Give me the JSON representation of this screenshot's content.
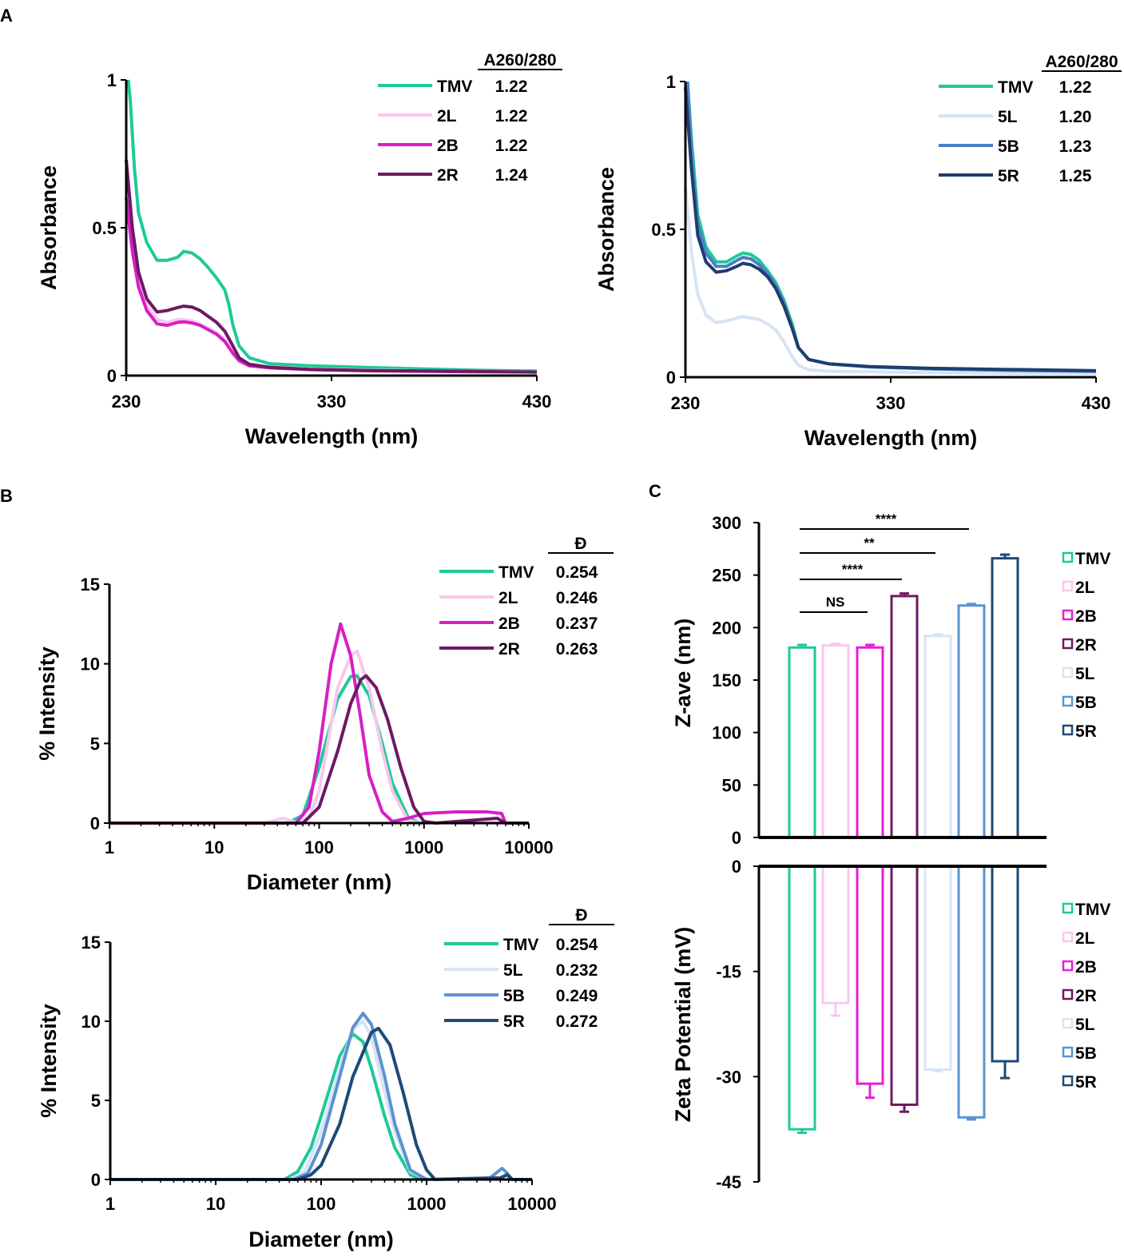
{
  "panels": {
    "a": "A",
    "b": "B",
    "c": "C"
  },
  "chart_data": [
    {
      "id": "A-left",
      "type": "line",
      "title": "",
      "xlabel": "Wavelength (nm)",
      "ylabel": "Absorbance",
      "xlim": [
        230,
        430
      ],
      "ylim": [
        0,
        1
      ],
      "xticks": [
        "230",
        "330",
        "430"
      ],
      "yticks": [
        "0",
        "0.5",
        "1"
      ],
      "legend_header": "A260/280",
      "series": [
        {
          "name": "TMV",
          "ratio": "1.22",
          "color": "#1fc99a",
          "x": [
            231,
            232,
            234,
            236,
            240,
            245,
            250,
            255,
            258,
            262,
            266,
            270,
            274,
            276,
            278,
            280,
            282,
            285,
            290,
            300,
            320,
            350,
            400,
            430
          ],
          "values": [
            1.0,
            0.93,
            0.7,
            0.55,
            0.45,
            0.39,
            0.39,
            0.4,
            0.42,
            0.415,
            0.395,
            0.365,
            0.33,
            0.31,
            0.29,
            0.24,
            0.17,
            0.1,
            0.06,
            0.04,
            0.033,
            0.027,
            0.018,
            0.015
          ]
        },
        {
          "name": "2L",
          "ratio": "1.22",
          "color": "#f9c7ee",
          "x": [
            230,
            233,
            236,
            240,
            245,
            250,
            255,
            258,
            262,
            266,
            270,
            274,
            278,
            282,
            285,
            290,
            300,
            320,
            350,
            400,
            430
          ],
          "values": [
            0.62,
            0.45,
            0.32,
            0.24,
            0.19,
            0.18,
            0.19,
            0.19,
            0.185,
            0.175,
            0.16,
            0.145,
            0.12,
            0.08,
            0.05,
            0.035,
            0.028,
            0.022,
            0.018,
            0.014,
            0.012
          ]
        },
        {
          "name": "2B",
          "ratio": "1.22",
          "color": "#d81ec6",
          "x": [
            230,
            233,
            236,
            240,
            245,
            250,
            255,
            258,
            262,
            266,
            270,
            274,
            278,
            282,
            285,
            290,
            300,
            320,
            350,
            400,
            430
          ],
          "values": [
            0.6,
            0.42,
            0.3,
            0.22,
            0.175,
            0.17,
            0.18,
            0.182,
            0.178,
            0.17,
            0.155,
            0.14,
            0.115,
            0.075,
            0.05,
            0.033,
            0.026,
            0.02,
            0.016,
            0.013,
            0.012
          ]
        },
        {
          "name": "2R",
          "ratio": "1.24",
          "color": "#6d1a62",
          "x": [
            230,
            233,
            236,
            240,
            245,
            250,
            255,
            258,
            262,
            266,
            270,
            274,
            278,
            282,
            285,
            290,
            300,
            320,
            350,
            400,
            430
          ],
          "values": [
            0.73,
            0.5,
            0.35,
            0.26,
            0.215,
            0.22,
            0.23,
            0.235,
            0.232,
            0.22,
            0.2,
            0.18,
            0.15,
            0.1,
            0.06,
            0.038,
            0.028,
            0.021,
            0.017,
            0.014,
            0.012
          ]
        }
      ]
    },
    {
      "id": "A-right",
      "type": "line",
      "title": "",
      "xlabel": "Wavelength (nm)",
      "ylabel": "Absorbance",
      "xlim": [
        230,
        430
      ],
      "ylim": [
        0,
        1
      ],
      "xticks": [
        "230",
        "330",
        "430"
      ],
      "yticks": [
        "0",
        "0.5",
        "1"
      ],
      "legend_header": "A260/280",
      "series": [
        {
          "name": "TMV",
          "ratio": "1.22",
          "color": "#1fc99a",
          "x": [
            231,
            233,
            236,
            240,
            245,
            250,
            255,
            258,
            262,
            266,
            270,
            274,
            278,
            282,
            285,
            290,
            300,
            320,
            350,
            400,
            430
          ],
          "values": [
            1.0,
            0.8,
            0.55,
            0.44,
            0.39,
            0.39,
            0.41,
            0.42,
            0.415,
            0.395,
            0.36,
            0.32,
            0.26,
            0.18,
            0.1,
            0.06,
            0.045,
            0.035,
            0.028,
            0.022,
            0.02
          ]
        },
        {
          "name": "5L",
          "ratio": "1.20",
          "color": "#d7e4f5",
          "x": [
            230,
            233,
            236,
            240,
            245,
            250,
            255,
            258,
            262,
            266,
            270,
            274,
            278,
            282,
            285,
            290,
            300,
            320,
            350,
            400,
            430
          ],
          "values": [
            0.64,
            0.42,
            0.28,
            0.21,
            0.185,
            0.19,
            0.2,
            0.205,
            0.2,
            0.195,
            0.18,
            0.16,
            0.12,
            0.07,
            0.04,
            0.025,
            0.02,
            0.018,
            0.015,
            0.012,
            0.012
          ]
        },
        {
          "name": "5B",
          "ratio": "1.23",
          "color": "#4a7fc6",
          "x": [
            231,
            233,
            236,
            240,
            245,
            250,
            255,
            258,
            262,
            266,
            270,
            274,
            278,
            282,
            285,
            290,
            300,
            320,
            350,
            400,
            430
          ],
          "values": [
            1.0,
            0.75,
            0.52,
            0.42,
            0.375,
            0.375,
            0.395,
            0.405,
            0.4,
            0.38,
            0.35,
            0.31,
            0.25,
            0.17,
            0.1,
            0.06,
            0.045,
            0.035,
            0.028,
            0.022,
            0.02
          ]
        },
        {
          "name": "5R",
          "ratio": "1.25",
          "color": "#1e3e6e",
          "x": [
            230,
            233,
            236,
            240,
            245,
            250,
            255,
            258,
            262,
            266,
            270,
            274,
            278,
            282,
            285,
            290,
            300,
            320,
            350,
            400,
            430
          ],
          "values": [
            0.98,
            0.7,
            0.48,
            0.39,
            0.355,
            0.36,
            0.375,
            0.385,
            0.38,
            0.365,
            0.34,
            0.3,
            0.24,
            0.165,
            0.1,
            0.06,
            0.045,
            0.036,
            0.03,
            0.025,
            0.022
          ]
        }
      ]
    },
    {
      "id": "B-top",
      "type": "line",
      "xscale": "log",
      "xlabel": "Diameter (nm)",
      "ylabel": "% Intensity",
      "xlim": [
        1,
        10000
      ],
      "ylim": [
        0,
        15
      ],
      "xticks": [
        "1",
        "10",
        "100",
        "1000",
        "10000"
      ],
      "yticks": [
        "0",
        "5",
        "10",
        "15"
      ],
      "legend_header": "Đ",
      "series": [
        {
          "name": "TMV",
          "ratio": "0.254",
          "color": "#1fc99a",
          "x": [
            1,
            50,
            70,
            100,
            150,
            200,
            230,
            300,
            400,
            500,
            700,
            900,
            10000
          ],
          "values": [
            0,
            0,
            0.5,
            3.5,
            7.8,
            9.2,
            9.25,
            8.0,
            5.0,
            2.5,
            0.4,
            0,
            0
          ]
        },
        {
          "name": "2L",
          "ratio": "0.246",
          "color": "#f9c7ee",
          "x": [
            1,
            30,
            45,
            60,
            80,
            100,
            150,
            200,
            230,
            300,
            400,
            500,
            700,
            900,
            10000
          ],
          "values": [
            0,
            0,
            0.3,
            0.05,
            0.3,
            2.0,
            8.5,
            10.5,
            10.8,
            8.5,
            4.5,
            2.0,
            0.2,
            0,
            0
          ]
        },
        {
          "name": "2B",
          "ratio": "0.237",
          "color": "#d81ec6",
          "x": [
            1,
            60,
            80,
            100,
            130,
            160,
            200,
            250,
            300,
            400,
            500,
            700,
            1000,
            2000,
            4000,
            5500,
            6000,
            10000
          ],
          "values": [
            0,
            0,
            1.0,
            4.5,
            10.0,
            12.5,
            10.5,
            6.5,
            3.0,
            0.7,
            0.1,
            0.3,
            0.6,
            0.7,
            0.7,
            0.6,
            0,
            0
          ]
        },
        {
          "name": "2R",
          "ratio": "0.263",
          "color": "#6d1a62",
          "x": [
            1,
            70,
            100,
            150,
            200,
            250,
            280,
            350,
            450,
            600,
            800,
            1000,
            1300,
            5000,
            6000,
            10000
          ],
          "values": [
            0,
            0,
            1.0,
            4.5,
            7.5,
            9.0,
            9.25,
            8.5,
            6.5,
            3.5,
            1.0,
            0.1,
            0,
            0.3,
            0,
            0
          ]
        }
      ]
    },
    {
      "id": "B-bottom",
      "type": "line",
      "xscale": "log",
      "xlabel": "Diameter (nm)",
      "ylabel": "% Intensity",
      "xlim": [
        1,
        10000
      ],
      "ylim": [
        0,
        15
      ],
      "xticks": [
        "1",
        "10",
        "100",
        "1000",
        "10000"
      ],
      "yticks": [
        "0",
        "5",
        "10",
        "15"
      ],
      "legend_header": "Đ",
      "series": [
        {
          "name": "TMV",
          "ratio": "0.254",
          "color": "#1fc99a",
          "x": [
            1,
            45,
            60,
            80,
            100,
            150,
            200,
            250,
            300,
            400,
            500,
            700,
            900,
            10000
          ],
          "values": [
            0,
            0,
            0.5,
            2.0,
            4.0,
            7.8,
            9.2,
            8.7,
            7.0,
            4.0,
            2.0,
            0.3,
            0,
            0
          ]
        },
        {
          "name": "5L",
          "ratio": "0.232",
          "color": "#d7e4f5",
          "x": [
            1,
            50,
            70,
            100,
            150,
            200,
            250,
            300,
            400,
            500,
            700,
            1000,
            10000
          ],
          "values": [
            0,
            0,
            0.5,
            3.0,
            7.0,
            9.5,
            10.0,
            9.0,
            5.5,
            3.0,
            0.5,
            0,
            0
          ]
        },
        {
          "name": "5B",
          "ratio": "0.249",
          "color": "#5b93d1",
          "x": [
            1,
            55,
            75,
            100,
            150,
            200,
            250,
            300,
            400,
            500,
            700,
            1000,
            4000,
            5200,
            5800,
            6500,
            10000
          ],
          "values": [
            0,
            0,
            0.4,
            2.2,
            6.5,
            9.6,
            10.5,
            9.8,
            6.5,
            3.5,
            0.6,
            0,
            0.1,
            0.7,
            0.4,
            0,
            0
          ]
        },
        {
          "name": "5R",
          "ratio": "0.272",
          "color": "#1e4a78",
          "x": [
            1,
            60,
            80,
            100,
            150,
            200,
            300,
            350,
            450,
            600,
            800,
            1000,
            1200,
            5000,
            5800,
            6500,
            10000
          ],
          "values": [
            0,
            0,
            0.3,
            0.9,
            3.5,
            6.5,
            9.3,
            9.55,
            8.5,
            5.5,
            2.2,
            0.6,
            0,
            0.1,
            0.3,
            0,
            0
          ]
        }
      ]
    },
    {
      "id": "C-top",
      "type": "bar",
      "ylabel": "Z-ave (nm)",
      "ylim": [
        0,
        300
      ],
      "yticks": [
        "0",
        "50",
        "100",
        "150",
        "200",
        "250",
        "300"
      ],
      "categories": [
        "TMV",
        "2L",
        "2B",
        "2R",
        "5L",
        "5B",
        "5R"
      ],
      "colors": [
        "#1fc99a",
        "#f9c7ee",
        "#e81ed8",
        "#6d1a62",
        "#d7e4f5",
        "#5b93d1",
        "#1e4a78"
      ],
      "values": [
        181,
        183,
        181,
        230,
        192,
        221,
        266
      ],
      "errors": [
        2.5,
        1.5,
        2.5,
        2.5,
        1.5,
        1.5,
        3.5
      ],
      "significance": [
        {
          "from": "TMV",
          "to": "2B",
          "label": "NS"
        },
        {
          "from": "TMV",
          "to": "2R",
          "label": "****"
        },
        {
          "from": "TMV",
          "to": "5L",
          "label": "**"
        },
        {
          "from": "TMV",
          "to": "5B",
          "label": "****"
        }
      ]
    },
    {
      "id": "C-bottom",
      "type": "bar",
      "ylabel": "Zeta Potential (mV)",
      "ylim": [
        -45,
        0
      ],
      "yticks": [
        "0",
        "-15",
        "-30",
        "-45"
      ],
      "categories": [
        "TMV",
        "2L",
        "2B",
        "2R",
        "5L",
        "5B",
        "5R"
      ],
      "colors": [
        "#1fc99a",
        "#f9c7ee",
        "#e81ed8",
        "#6d1a62",
        "#d7e4f5",
        "#5b93d1",
        "#1e4a78"
      ],
      "values": [
        -37.5,
        -19.5,
        -31,
        -34,
        -29,
        -35.8,
        -27.8
      ],
      "errors": [
        0.5,
        1.8,
        2.0,
        1.0,
        0.2,
        0.3,
        2.4
      ]
    }
  ]
}
